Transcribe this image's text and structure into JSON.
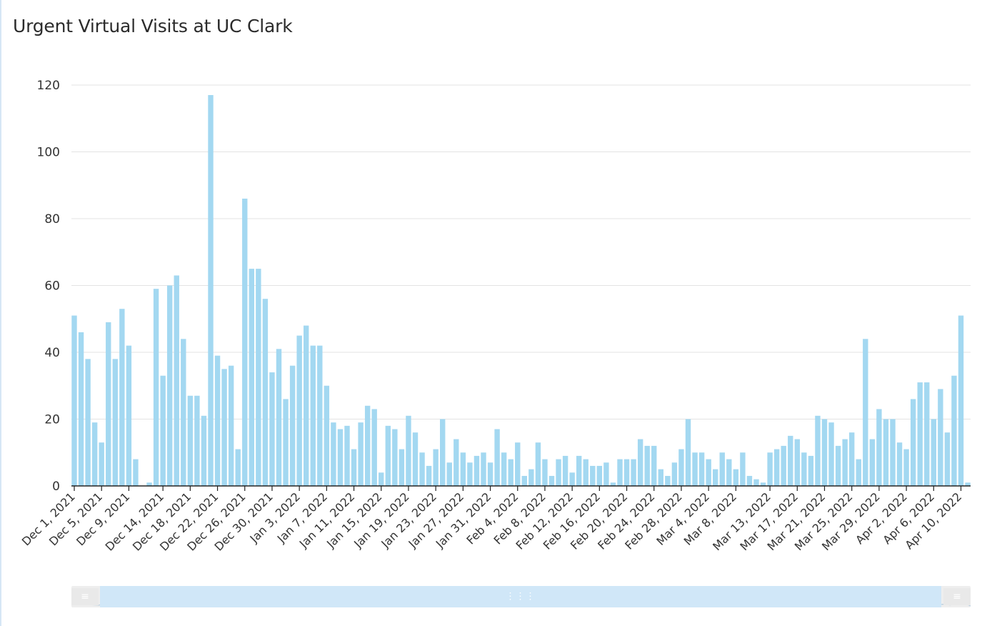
{
  "title": "Urgent Virtual Visits at UC Clark",
  "colors": {
    "bar": "#a3d8f1",
    "grid": "#e3e3e3",
    "axis": "#222222",
    "scrubber_window": "#d0e7f8"
  },
  "scrubber": {
    "left_handle_icon": "drag-handle-icon",
    "right_handle_icon": "drag-handle-icon",
    "grip_icon": "grip-dots-icon"
  },
  "chart_data": {
    "type": "bar",
    "title": "Urgent Virtual Visits at UC Clark",
    "xlabel": "",
    "ylabel": "",
    "ylim": [
      0,
      120
    ],
    "y_ticks": [
      0,
      20,
      40,
      60,
      80,
      100,
      120
    ],
    "grid": true,
    "x_tick_labels": [
      {
        "label": "Dec 1, 2021",
        "index": 0
      },
      {
        "label": "Dec 5, 2021",
        "index": 4
      },
      {
        "label": "Dec 9, 2021",
        "index": 8
      },
      {
        "label": "Dec 14, 2021",
        "index": 13
      },
      {
        "label": "Dec 18, 2021",
        "index": 17
      },
      {
        "label": "Dec 22, 2021",
        "index": 21
      },
      {
        "label": "Dec 26, 2021",
        "index": 25
      },
      {
        "label": "Dec 30, 2021",
        "index": 29
      },
      {
        "label": "Jan 3, 2022",
        "index": 33
      },
      {
        "label": "Jan 7, 2022",
        "index": 37
      },
      {
        "label": "Jan 11, 2022",
        "index": 41
      },
      {
        "label": "Jan 15, 2022",
        "index": 45
      },
      {
        "label": "Jan 19, 2022",
        "index": 49
      },
      {
        "label": "Jan 23, 2022",
        "index": 53
      },
      {
        "label": "Jan 27, 2022",
        "index": 57
      },
      {
        "label": "Jan 31, 2022",
        "index": 61
      },
      {
        "label": "Feb 4, 2022",
        "index": 65
      },
      {
        "label": "Feb 8, 2022",
        "index": 69
      },
      {
        "label": "Feb 12, 2022",
        "index": 73
      },
      {
        "label": "Feb 16, 2022",
        "index": 77
      },
      {
        "label": "Feb 20, 2022",
        "index": 81
      },
      {
        "label": "Feb 24, 2022",
        "index": 85
      },
      {
        "label": "Feb 28, 2022",
        "index": 89
      },
      {
        "label": "Mar 4, 2022",
        "index": 93
      },
      {
        "label": "Mar 8, 2022",
        "index": 97
      },
      {
        "label": "Mar 13, 2022",
        "index": 102
      },
      {
        "label": "Mar 17, 2022",
        "index": 106
      },
      {
        "label": "Mar 21, 2022",
        "index": 110
      },
      {
        "label": "Mar 25, 2022",
        "index": 114
      },
      {
        "label": "Mar 29, 2022",
        "index": 118
      },
      {
        "label": "Apr 2, 2022",
        "index": 122
      },
      {
        "label": "Apr 6, 2022",
        "index": 126
      },
      {
        "label": "Apr 10, 2022",
        "index": 130
      }
    ],
    "values": [
      51,
      46,
      38,
      19,
      13,
      49,
      38,
      53,
      42,
      8,
      0,
      1,
      59,
      33,
      60,
      63,
      44,
      27,
      27,
      21,
      117,
      39,
      35,
      36,
      11,
      86,
      65,
      65,
      56,
      34,
      41,
      26,
      36,
      45,
      48,
      42,
      42,
      30,
      19,
      17,
      18,
      11,
      19,
      24,
      23,
      4,
      18,
      17,
      11,
      21,
      16,
      10,
      6,
      11,
      20,
      7,
      14,
      10,
      7,
      9,
      10,
      7,
      17,
      10,
      8,
      13,
      3,
      5,
      13,
      8,
      3,
      8,
      9,
      4,
      9,
      8,
      6,
      6,
      7,
      1,
      8,
      8,
      8,
      14,
      12,
      12,
      5,
      3,
      7,
      11,
      20,
      10,
      10,
      8,
      5,
      10,
      8,
      5,
      10,
      3,
      2,
      1,
      10,
      11,
      12,
      15,
      14,
      10,
      9,
      21,
      20,
      19,
      12,
      14,
      16,
      8,
      44,
      14,
      23,
      20,
      20,
      13,
      11,
      26,
      31,
      31,
      20,
      29,
      16,
      33,
      51,
      1
    ]
  }
}
